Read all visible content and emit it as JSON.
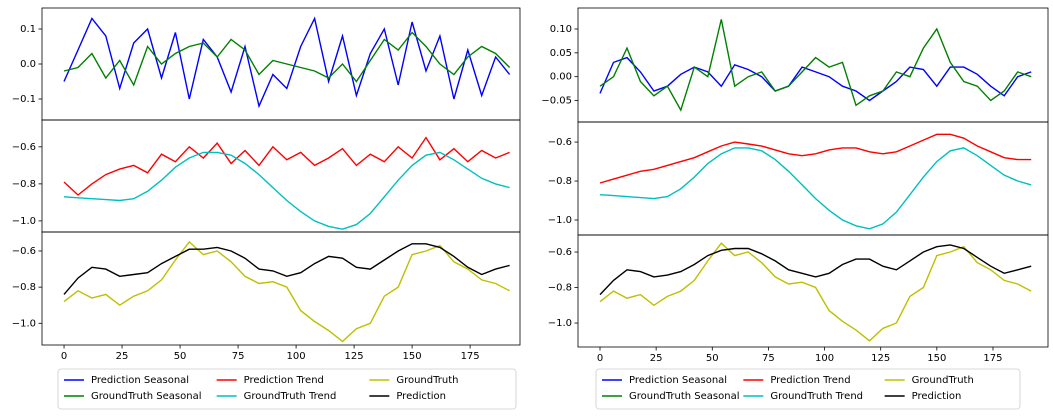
{
  "chart_data": [
    {
      "type": "line",
      "x": [
        0,
        6,
        12,
        18,
        24,
        30,
        36,
        42,
        48,
        54,
        60,
        66,
        72,
        78,
        84,
        90,
        96,
        102,
        108,
        114,
        120,
        126,
        132,
        138,
        144,
        150,
        156,
        162,
        168,
        174,
        180,
        186,
        192
      ],
      "xlim": [
        -9.5,
        196.5
      ],
      "xticks": [
        0,
        25,
        50,
        75,
        100,
        125,
        150,
        175
      ],
      "panels": [
        {
          "ylim": [
            -0.16,
            0.16
          ],
          "yticks": [
            {
              "value": -0.1,
              "label": "−0.1"
            },
            {
              "value": 0,
              "label": "0.0"
            },
            {
              "value": 0.1,
              "label": "0.1"
            }
          ],
          "series": [
            {
              "name": "Prediction Seasonal",
              "color": "#0000ff",
              "values": [
                -0.05,
                0.04,
                0.13,
                0.08,
                -0.07,
                0.06,
                0.1,
                -0.04,
                0.09,
                -0.1,
                0.07,
                0.02,
                -0.08,
                0.05,
                -0.12,
                -0.03,
                -0.07,
                0.05,
                0.13,
                -0.05,
                0.08,
                -0.09,
                0.03,
                0.1,
                -0.06,
                0.12,
                -0.02,
                0.08,
                -0.1,
                0.04,
                -0.09,
                0.02,
                -0.03
              ]
            },
            {
              "name": "GroundTruth Seasonal",
              "color": "#008000",
              "values": [
                -0.02,
                -0.01,
                0.03,
                -0.04,
                0.01,
                -0.06,
                0.05,
                0.0,
                0.03,
                0.05,
                0.06,
                0.02,
                0.07,
                0.04,
                -0.03,
                0.01,
                0.0,
                -0.01,
                -0.02,
                -0.04,
                0.0,
                -0.05,
                0.01,
                0.07,
                0.04,
                0.09,
                0.05,
                0.0,
                -0.03,
                0.02,
                0.05,
                0.03,
                -0.01
              ]
            }
          ]
        },
        {
          "ylim": [
            -1.06,
            -0.455
          ],
          "yticks": [
            {
              "value": -1.0,
              "label": "−1.0"
            },
            {
              "value": -0.8,
              "label": "−0.8"
            },
            {
              "value": -0.6,
              "label": "−0.6"
            }
          ],
          "series": [
            {
              "name": "Prediction Trend",
              "color": "#ff0000",
              "values": [
                -0.79,
                -0.86,
                -0.8,
                -0.75,
                -0.72,
                -0.7,
                -0.74,
                -0.64,
                -0.68,
                -0.6,
                -0.66,
                -0.58,
                -0.69,
                -0.62,
                -0.7,
                -0.6,
                -0.67,
                -0.63,
                -0.7,
                -0.66,
                -0.61,
                -0.7,
                -0.64,
                -0.68,
                -0.6,
                -0.66,
                -0.55,
                -0.67,
                -0.61,
                -0.68,
                -0.62,
                -0.66,
                -0.63
              ]
            },
            {
              "name": "GroundTruth Trend",
              "color": "#00bfbf",
              "values": [
                -0.87,
                -0.875,
                -0.88,
                -0.885,
                -0.89,
                -0.88,
                -0.84,
                -0.78,
                -0.71,
                -0.66,
                -0.63,
                -0.63,
                -0.645,
                -0.69,
                -0.75,
                -0.82,
                -0.89,
                -0.95,
                -1.0,
                -1.03,
                -1.045,
                -1.02,
                -0.96,
                -0.87,
                -0.78,
                -0.7,
                -0.645,
                -0.63,
                -0.67,
                -0.72,
                -0.77,
                -0.8,
                -0.82
              ]
            }
          ]
        },
        {
          "ylim": [
            -1.12,
            -0.495
          ],
          "yticks": [
            {
              "value": -1.0,
              "label": "−1.0"
            },
            {
              "value": -0.8,
              "label": "−0.8"
            },
            {
              "value": -0.6,
              "label": "−0.6"
            }
          ],
          "series": [
            {
              "name": "GroundTruth",
              "color": "#bfbf00",
              "values": [
                -0.88,
                -0.82,
                -0.86,
                -0.84,
                -0.9,
                -0.85,
                -0.82,
                -0.76,
                -0.65,
                -0.55,
                -0.62,
                -0.6,
                -0.66,
                -0.74,
                -0.78,
                -0.77,
                -0.8,
                -0.93,
                -0.99,
                -1.04,
                -1.1,
                -1.03,
                -1.0,
                -0.85,
                -0.8,
                -0.62,
                -0.6,
                -0.57,
                -0.66,
                -0.7,
                -0.76,
                -0.78,
                -0.82
              ]
            },
            {
              "name": "Prediction",
              "color": "#000000",
              "values": [
                -0.84,
                -0.75,
                -0.69,
                -0.7,
                -0.74,
                -0.73,
                -0.72,
                -0.67,
                -0.63,
                -0.59,
                -0.59,
                -0.58,
                -0.6,
                -0.64,
                -0.7,
                -0.71,
                -0.74,
                -0.72,
                -0.67,
                -0.63,
                -0.64,
                -0.69,
                -0.7,
                -0.65,
                -0.6,
                -0.56,
                -0.56,
                -0.58,
                -0.63,
                -0.69,
                -0.73,
                -0.7,
                -0.68
              ]
            }
          ]
        }
      ]
    },
    {
      "type": "line",
      "x": [
        0,
        6,
        12,
        18,
        24,
        30,
        36,
        42,
        48,
        54,
        60,
        66,
        72,
        78,
        84,
        90,
        96,
        102,
        108,
        114,
        120,
        126,
        132,
        138,
        144,
        150,
        156,
        162,
        168,
        174,
        180,
        186,
        192
      ],
      "xlim": [
        -9.8,
        199.5
      ],
      "xticks": [
        0,
        25,
        50,
        75,
        100,
        125,
        150,
        175
      ],
      "panels": [
        {
          "ylim": [
            -0.095,
            0.144
          ],
          "yticks": [
            {
              "value": -0.05,
              "label": "−0.05"
            },
            {
              "value": 0,
              "label": "0.00"
            },
            {
              "value": 0.05,
              "label": "0.05"
            },
            {
              "value": 0.1,
              "label": "0.10"
            }
          ],
          "series": [
            {
              "name": "Prediction Seasonal",
              "color": "#0000ff",
              "values": [
                -0.035,
                0.03,
                0.04,
                0.01,
                -0.03,
                -0.02,
                0.005,
                0.02,
                0.01,
                -0.02,
                0.025,
                0.015,
                0.0,
                -0.03,
                -0.02,
                0.02,
                0.01,
                0.0,
                -0.02,
                -0.03,
                -0.05,
                -0.03,
                -0.01,
                0.02,
                0.015,
                -0.02,
                0.02,
                0.02,
                0.005,
                -0.02,
                -0.04,
                0.0,
                0.01
              ]
            },
            {
              "name": "GroundTruth Seasonal",
              "color": "#008000",
              "values": [
                -0.02,
                0.0,
                0.06,
                -0.01,
                -0.04,
                -0.02,
                -0.07,
                0.02,
                0.0,
                0.12,
                -0.02,
                0.0,
                0.01,
                -0.03,
                -0.02,
                0.01,
                0.04,
                0.02,
                0.03,
                -0.06,
                -0.04,
                -0.03,
                0.01,
                0.0,
                0.06,
                0.1,
                0.03,
                -0.01,
                -0.02,
                -0.05,
                -0.03,
                0.01,
                0.0
              ]
            }
          ]
        },
        {
          "ylim": [
            -1.077,
            -0.497
          ],
          "yticks": [
            {
              "value": -1.0,
              "label": "−1.0"
            },
            {
              "value": -0.8,
              "label": "−0.8"
            },
            {
              "value": -0.6,
              "label": "−0.6"
            }
          ],
          "series": [
            {
              "name": "Prediction Trend",
              "color": "#ff0000",
              "values": [
                -0.81,
                -0.79,
                -0.77,
                -0.75,
                -0.74,
                -0.72,
                -0.7,
                -0.68,
                -0.65,
                -0.62,
                -0.6,
                -0.61,
                -0.62,
                -0.64,
                -0.66,
                -0.67,
                -0.66,
                -0.64,
                -0.63,
                -0.63,
                -0.65,
                -0.66,
                -0.65,
                -0.62,
                -0.59,
                -0.56,
                -0.56,
                -0.58,
                -0.62,
                -0.65,
                -0.68,
                -0.69,
                -0.69
              ]
            },
            {
              "name": "GroundTruth Trend",
              "color": "#00bfbf",
              "values": [
                -0.87,
                -0.875,
                -0.88,
                -0.885,
                -0.89,
                -0.88,
                -0.84,
                -0.78,
                -0.71,
                -0.66,
                -0.63,
                -0.63,
                -0.645,
                -0.69,
                -0.75,
                -0.82,
                -0.89,
                -0.95,
                -1.0,
                -1.03,
                -1.045,
                -1.02,
                -0.96,
                -0.87,
                -0.78,
                -0.7,
                -0.645,
                -0.63,
                -0.67,
                -0.72,
                -0.77,
                -0.8,
                -0.82
              ]
            }
          ]
        },
        {
          "ylim": [
            -1.135,
            -0.504
          ],
          "yticks": [
            {
              "value": -1.0,
              "label": "−1.0"
            },
            {
              "value": -0.8,
              "label": "−0.8"
            },
            {
              "value": -0.6,
              "label": "−0.6"
            }
          ],
          "series": [
            {
              "name": "GroundTruth",
              "color": "#bfbf00",
              "values": [
                -0.88,
                -0.82,
                -0.86,
                -0.84,
                -0.9,
                -0.85,
                -0.82,
                -0.76,
                -0.65,
                -0.55,
                -0.62,
                -0.6,
                -0.66,
                -0.74,
                -0.78,
                -0.77,
                -0.8,
                -0.93,
                -0.99,
                -1.04,
                -1.1,
                -1.03,
                -1.0,
                -0.85,
                -0.8,
                -0.62,
                -0.6,
                -0.57,
                -0.66,
                -0.7,
                -0.76,
                -0.78,
                -0.82
              ]
            },
            {
              "name": "Prediction",
              "color": "#000000",
              "values": [
                -0.84,
                -0.76,
                -0.7,
                -0.71,
                -0.74,
                -0.73,
                -0.71,
                -0.67,
                -0.62,
                -0.59,
                -0.58,
                -0.58,
                -0.61,
                -0.65,
                -0.7,
                -0.72,
                -0.74,
                -0.72,
                -0.67,
                -0.64,
                -0.64,
                -0.68,
                -0.7,
                -0.65,
                -0.6,
                -0.57,
                -0.56,
                -0.58,
                -0.63,
                -0.68,
                -0.72,
                -0.7,
                -0.68
              ]
            }
          ]
        }
      ]
    }
  ]
}
